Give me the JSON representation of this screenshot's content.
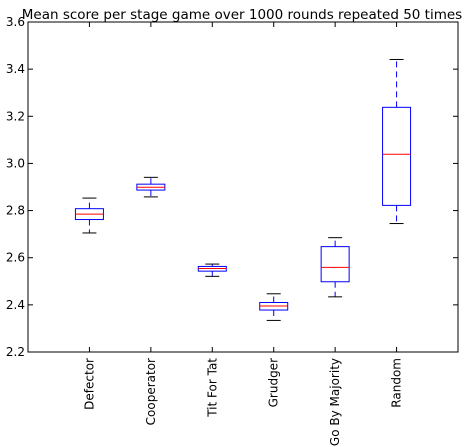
{
  "chart_data": {
    "type": "box",
    "title": "Mean score per stage game over 1000 rounds repeated 50 times",
    "xlabel": "",
    "ylabel": "",
    "ylim": [
      2.2,
      3.6
    ],
    "yticks": [
      "2.2",
      "2.4",
      "2.6",
      "2.8",
      "3.0",
      "3.2",
      "3.4",
      "3.6"
    ],
    "grid": false,
    "colors": {
      "box": "#0000ff",
      "median": "#ff0000",
      "whisker": "#0000ff",
      "cap": "#000000",
      "frame": "#000000"
    },
    "categories": [
      "Defector",
      "Cooperator",
      "Tit For Tat",
      "Grudger",
      "Go By Majority",
      "Random"
    ],
    "boxes": [
      {
        "label": "Defector",
        "whislo": 2.705,
        "q1": 2.762,
        "median": 2.785,
        "q3": 2.808,
        "whishi": 2.853
      },
      {
        "label": "Cooperator",
        "whislo": 2.858,
        "q1": 2.887,
        "median": 2.899,
        "q3": 2.912,
        "whishi": 2.941
      },
      {
        "label": "Tit For Tat",
        "whislo": 2.521,
        "q1": 2.543,
        "median": 2.554,
        "q3": 2.563,
        "whishi": 2.573
      },
      {
        "label": "Grudger",
        "whislo": 2.334,
        "q1": 2.378,
        "median": 2.395,
        "q3": 2.41,
        "whishi": 2.447
      },
      {
        "label": "Go By Majority",
        "whislo": 2.434,
        "q1": 2.498,
        "median": 2.559,
        "q3": 2.647,
        "whishi": 2.685
      },
      {
        "label": "Random",
        "whislo": 2.745,
        "q1": 2.822,
        "median": 3.039,
        "q3": 3.238,
        "whishi": 3.441
      }
    ]
  }
}
